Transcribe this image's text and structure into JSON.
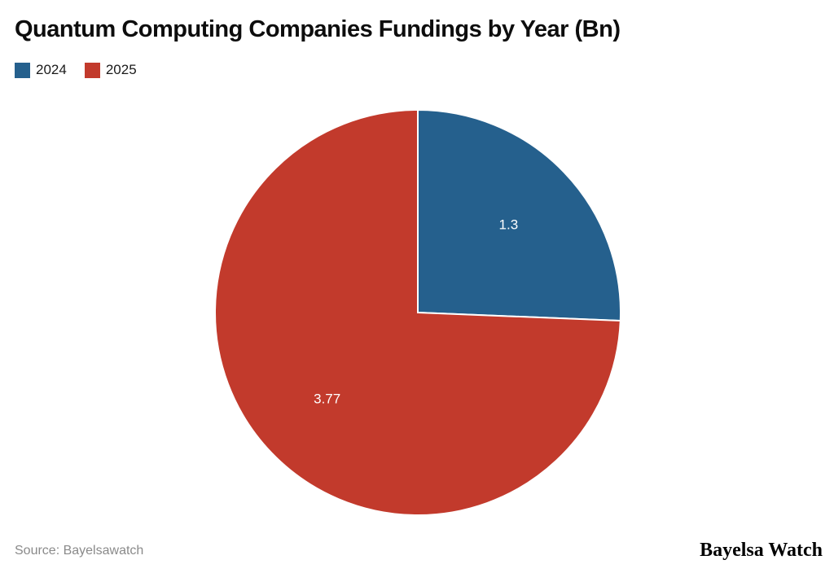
{
  "header": {
    "title": "Quantum Computing Companies Fundings by Year (Bn)"
  },
  "chart_data": {
    "type": "pie",
    "title": "Quantum Computing Companies Fundings by Year (Bn)",
    "series": [
      {
        "name": "2024",
        "value": 1.3,
        "label": "1.3",
        "color": "#25608D"
      },
      {
        "name": "2025",
        "value": 3.77,
        "label": "3.77",
        "color": "#C23A2C"
      }
    ],
    "start_angle_deg": -90,
    "direction": "clockwise",
    "legend_position": "top-left",
    "value_label_color": "#ffffff",
    "slice_border_color": "#ffffff",
    "center": {
      "x": 513,
      "y": 384
    },
    "radius": 249,
    "label_radius_ratio": 0.62
  },
  "footer": {
    "source": "Source: Bayelsawatch",
    "brand": "Bayelsa Watch"
  }
}
